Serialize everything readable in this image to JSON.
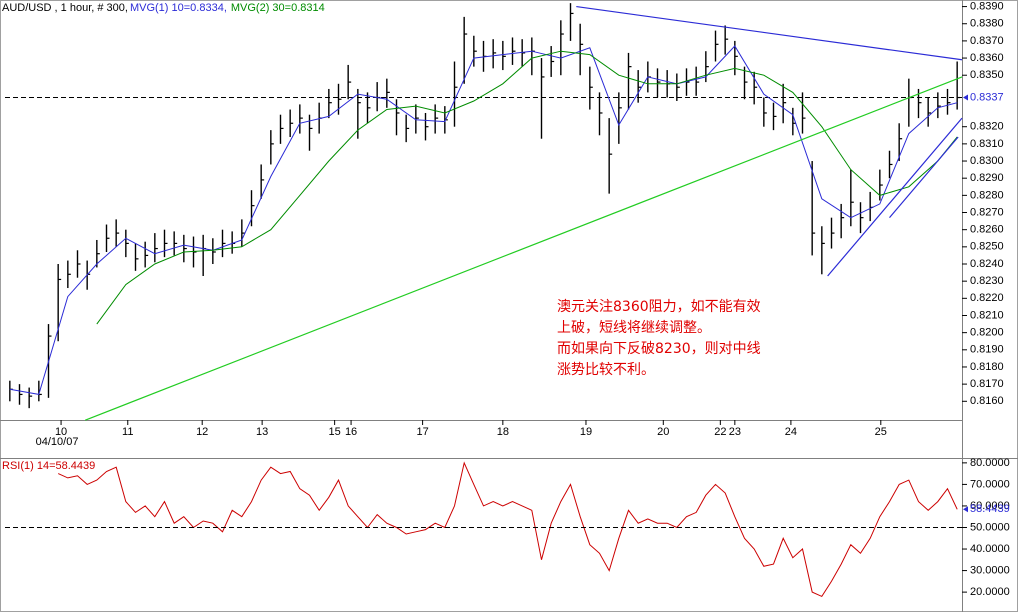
{
  "chart_data": [
    {
      "type": "ohlc",
      "title": "AUD/USD , 1 hour, # 300, ",
      "series": [
        {
          "color": "#000000",
          "high": [
            0.8172,
            0.817,
            0.8168,
            0.8172,
            0.8205,
            0.824,
            0.8242,
            0.8248,
            0.8242,
            0.8254,
            0.8263,
            0.8266,
            0.826,
            0.8252,
            0.8253,
            0.8258,
            0.826,
            0.8259,
            0.8257,
            0.8256,
            0.8257,
            0.8255,
            0.826,
            0.8259,
            0.8266,
            0.8283,
            0.8298,
            0.8318,
            0.8327,
            0.833,
            0.8333,
            0.8327,
            0.8334,
            0.8342,
            0.8345,
            0.8356,
            0.8342,
            0.834,
            0.8346,
            0.8348,
            0.8336,
            0.8327,
            0.8333,
            0.8328,
            0.8333,
            0.8332,
            0.8358,
            0.8384,
            0.8373,
            0.837,
            0.8371,
            0.837,
            0.8372,
            0.8371,
            0.8372,
            0.836,
            0.8367,
            0.8382,
            0.8392,
            0.838,
            0.8355,
            0.834,
            0.8325,
            0.834,
            0.8363,
            0.8353,
            0.8358,
            0.8354,
            0.8353,
            0.8351,
            0.8354,
            0.8355,
            0.8364,
            0.8376,
            0.8379,
            0.837,
            0.8355,
            0.8352,
            0.8337,
            0.8334,
            0.8345,
            0.8331,
            0.834,
            0.83,
            0.8262,
            0.8267,
            0.8275,
            0.8295,
            0.8276,
            0.8282,
            0.8295,
            0.8306,
            0.8322,
            0.8348,
            0.8342,
            0.8337,
            0.834,
            0.8342,
            0.8358
          ],
          "low": [
            0.816,
            0.8158,
            0.8156,
            0.816,
            0.8162,
            0.8195,
            0.8226,
            0.8232,
            0.8225,
            0.8238,
            0.8247,
            0.825,
            0.8244,
            0.8236,
            0.8238,
            0.8241,
            0.8244,
            0.8245,
            0.8241,
            0.8238,
            0.8233,
            0.824,
            0.8244,
            0.8246,
            0.825,
            0.8262,
            0.8278,
            0.8298,
            0.831,
            0.8314,
            0.8316,
            0.8306,
            0.8316,
            0.8325,
            0.8327,
            0.8336,
            0.8313,
            0.8322,
            0.8329,
            0.8331,
            0.8315,
            0.8311,
            0.8316,
            0.8312,
            0.8316,
            0.8316,
            0.832,
            0.8345,
            0.8355,
            0.8352,
            0.8354,
            0.8353,
            0.8356,
            0.8355,
            0.835,
            0.8313,
            0.8349,
            0.835,
            0.837,
            0.835,
            0.833,
            0.8315,
            0.8281,
            0.831,
            0.833,
            0.8334,
            0.834,
            0.8337,
            0.8337,
            0.8335,
            0.8338,
            0.8338,
            0.8346,
            0.8358,
            0.8362,
            0.835,
            0.8336,
            0.8333,
            0.832,
            0.8318,
            0.8322,
            0.8315,
            0.8316,
            0.8245,
            0.8234,
            0.8249,
            0.8255,
            0.8262,
            0.8258,
            0.8265,
            0.8277,
            0.829,
            0.83,
            0.832,
            0.8325,
            0.832,
            0.8325,
            0.8327,
            0.833
          ],
          "close": [
            0.8167,
            0.8164,
            0.8163,
            0.8164,
            0.8198,
            0.8231,
            0.8234,
            0.824,
            0.8234,
            0.8246,
            0.8255,
            0.8258,
            0.8252,
            0.8243,
            0.8245,
            0.8249,
            0.8252,
            0.8252,
            0.8249,
            0.8247,
            0.8249,
            0.8247,
            0.8252,
            0.8252,
            0.8258,
            0.8274,
            0.8289,
            0.831,
            0.8319,
            0.8322,
            0.8325,
            0.8319,
            0.8325,
            0.8334,
            0.8336,
            0.8346,
            0.8334,
            0.8331,
            0.8337,
            0.834,
            0.8328,
            0.8319,
            0.8325,
            0.832,
            0.8325,
            0.8324,
            0.8343,
            0.8374,
            0.8364,
            0.8361,
            0.8363,
            0.8361,
            0.8364,
            0.8363,
            0.8364,
            0.8349,
            0.8358,
            0.8374,
            0.8386,
            0.8368,
            0.8343,
            0.8328,
            0.8304,
            0.8331,
            0.8355,
            0.8343,
            0.8349,
            0.8346,
            0.8345,
            0.8343,
            0.8346,
            0.8346,
            0.8355,
            0.8368,
            0.8371,
            0.8361,
            0.8346,
            0.8343,
            0.8328,
            0.8326,
            0.8334,
            0.8322,
            0.8325,
            0.8258,
            0.8252,
            0.8258,
            0.8267,
            0.8276,
            0.8267,
            0.8273,
            0.8286,
            0.8298,
            0.8313,
            0.8337,
            0.8334,
            0.8328,
            0.8332,
            0.8334,
            0.8337
          ]
        }
      ],
      "moving_averages": [
        {
          "name": "MVG(1) 10=0.8334,",
          "color": "#2b2bd6",
          "x": [
            0,
            3,
            6,
            9,
            12,
            15,
            18,
            21,
            24,
            27,
            30,
            33,
            36,
            39,
            42,
            45,
            48,
            51,
            54,
            57,
            60,
            63,
            66,
            69,
            72,
            75,
            78,
            81,
            84,
            87,
            90,
            93,
            96,
            98
          ],
          "values": [
            0.8167,
            0.8164,
            0.8221,
            0.824,
            0.8255,
            0.8246,
            0.8251,
            0.8248,
            0.8254,
            0.8291,
            0.8322,
            0.8326,
            0.8339,
            0.8336,
            0.8324,
            0.8323,
            0.836,
            0.8362,
            0.8364,
            0.836,
            0.8366,
            0.8321,
            0.8349,
            0.8345,
            0.8349,
            0.8367,
            0.8339,
            0.8327,
            0.8278,
            0.8267,
            0.8275,
            0.8316,
            0.8331,
            0.8334
          ]
        },
        {
          "name": "MVG(2) 30=0.8314",
          "color": "#008c00",
          "x": [
            9,
            12,
            15,
            18,
            21,
            24,
            27,
            30,
            33,
            36,
            39,
            42,
            45,
            48,
            51,
            54,
            57,
            60,
            63,
            66,
            69,
            72,
            75,
            78,
            81,
            84,
            87,
            90,
            93,
            96,
            98
          ],
          "values": [
            0.8205,
            0.8228,
            0.824,
            0.8247,
            0.8248,
            0.825,
            0.826,
            0.828,
            0.83,
            0.8318,
            0.833,
            0.8332,
            0.8328,
            0.8335,
            0.8345,
            0.836,
            0.8364,
            0.8362,
            0.835,
            0.8345,
            0.8345,
            0.835,
            0.8354,
            0.835,
            0.834,
            0.832,
            0.8295,
            0.828,
            0.8285,
            0.83,
            0.8314
          ]
        }
      ],
      "trendlines": [
        {
          "color": "#2b2bd6",
          "x": [
            58.6,
            98.5
          ],
          "values": [
            0.839,
            0.8359
          ]
        },
        {
          "color": "#22cc22",
          "x": [
            7.8,
            98.5
          ],
          "values": [
            0.8149,
            0.8349
          ]
        },
        {
          "color": "#2b2bd6",
          "x": [
            84.6,
            98.5
          ],
          "values": [
            0.8233,
            0.8325
          ]
        },
        {
          "color": "#2b2bd6",
          "x": [
            91.0,
            98.1
          ],
          "values": [
            0.8267,
            0.8314
          ]
        }
      ],
      "xlim": [
        -0.5,
        98.5
      ],
      "xticks": [
        {
          "value": 5.3,
          "label": "10"
        },
        {
          "value": 12.2,
          "label": "11"
        },
        {
          "value": 19.9,
          "label": "12"
        },
        {
          "value": 26.1,
          "label": "13"
        },
        {
          "value": 33.6,
          "label": "15"
        },
        {
          "value": 35.3,
          "label": "16"
        },
        {
          "value": 42.7,
          "label": "17"
        },
        {
          "value": 51,
          "label": "18"
        },
        {
          "value": 59.6,
          "label": "19"
        },
        {
          "value": 67.6,
          "label": "20"
        },
        {
          "value": 73.5,
          "label": "22"
        },
        {
          "value": 75,
          "label": "23"
        },
        {
          "value": 80.8,
          "label": "24"
        },
        {
          "value": 90.1,
          "label": "25"
        }
      ],
      "date_label": "04/10/07",
      "ylim": [
        0.81491,
        0.83915
      ],
      "yticks": [
        {
          "value": 0.839,
          "label": "0.8390"
        },
        {
          "value": 0.838,
          "label": "0.8380"
        },
        {
          "value": 0.837,
          "label": "0.8370"
        },
        {
          "value": 0.836,
          "label": "0.8360"
        },
        {
          "value": 0.835,
          "label": "0.8350"
        },
        {
          "value": 0.832,
          "label": "0.8320"
        },
        {
          "value": 0.831,
          "label": "0.8310"
        },
        {
          "value": 0.83,
          "label": "0.8300"
        },
        {
          "value": 0.829,
          "label": "0.8290"
        },
        {
          "value": 0.828,
          "label": "0.8280"
        },
        {
          "value": 0.827,
          "label": "0.8270"
        },
        {
          "value": 0.826,
          "label": "0.8260"
        },
        {
          "value": 0.825,
          "label": "0.8250"
        },
        {
          "value": 0.824,
          "label": "0.8240"
        },
        {
          "value": 0.823,
          "label": "0.8230"
        },
        {
          "value": 0.822,
          "label": "0.8220"
        },
        {
          "value": 0.821,
          "label": "0.8210"
        },
        {
          "value": 0.82,
          "label": "0.8200"
        },
        {
          "value": 0.819,
          "label": "0.8190"
        },
        {
          "value": 0.818,
          "label": "0.8180"
        },
        {
          "value": 0.817,
          "label": "0.8170"
        },
        {
          "value": 0.816,
          "label": "0.8160"
        }
      ],
      "last_value": 0.8337,
      "annotation": [
        "澳元关注8360阻力，如不能有效",
        "上破，短线将继续调整。",
        "而如果向下反破8230，则对中线",
        "涨势比较不利。"
      ]
    },
    {
      "type": "line",
      "title": "RSI(1) 14=58.4439",
      "color": "#cc0000",
      "values": [
        null,
        null,
        null,
        null,
        null,
        75,
        73,
        74,
        70,
        72,
        76,
        78,
        62,
        57,
        60,
        55,
        62,
        52,
        55,
        50,
        53,
        52,
        48,
        58,
        55,
        62,
        72,
        78,
        75,
        76,
        68,
        65,
        58,
        64,
        72,
        60,
        55,
        50,
        56,
        52,
        50,
        47,
        48,
        49,
        52,
        50,
        60,
        80,
        70,
        60,
        62,
        60,
        62,
        60,
        58,
        35,
        52,
        62,
        70,
        55,
        42,
        38,
        30,
        45,
        58,
        52,
        54,
        52,
        52,
        50,
        55,
        57,
        65,
        70,
        66,
        55,
        45,
        40,
        32,
        33,
        45,
        36,
        40,
        20,
        18,
        25,
        33,
        42,
        38,
        45,
        55,
        62,
        70,
        72,
        62,
        58,
        62,
        68,
        58.4439
      ],
      "xlim": [
        -0.5,
        98.5
      ],
      "ylim": [
        11.7,
        80.4
      ],
      "yticks": [
        {
          "value": 80,
          "label": "80.0000"
        },
        {
          "value": 70,
          "label": "70.0000"
        },
        {
          "value": 60,
          "label": "60.0000"
        },
        {
          "value": 50,
          "label": "50.0000"
        },
        {
          "value": 40,
          "label": "40.0000"
        },
        {
          "value": 30,
          "label": "30.0000"
        },
        {
          "value": 20,
          "label": "20.0000"
        }
      ],
      "reference_line": 50,
      "last_value": 58.4439
    }
  ]
}
